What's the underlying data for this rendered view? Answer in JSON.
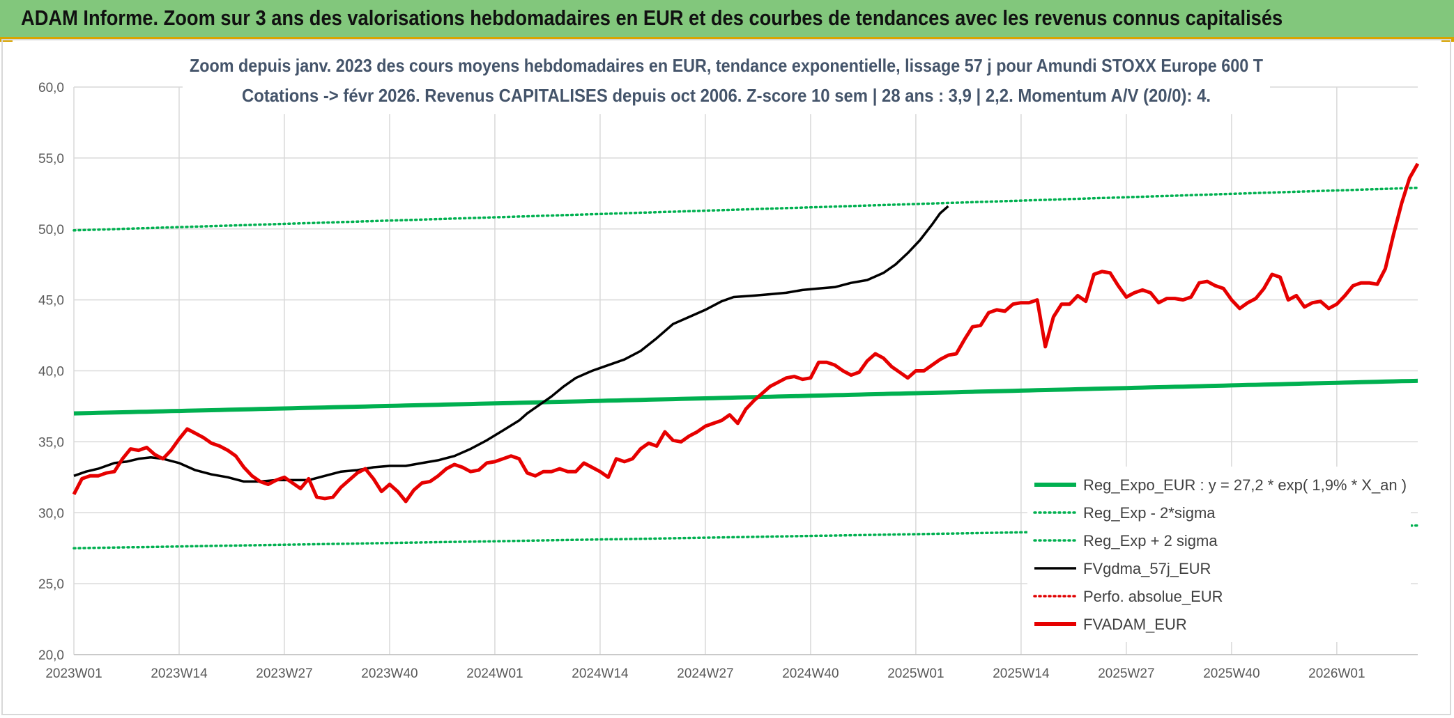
{
  "header": {
    "title": "ADAM Informe. Zoom sur 3 ans des valorisations hebdomadaires en EUR et des courbes de tendances avec les revenus connus capitalisés"
  },
  "colors": {
    "header_bg": "#82c77c",
    "reg_expo": "#00b050",
    "sigma": "#00b050",
    "fvgdma": "#000000",
    "perfo": "#e00000",
    "fvadam": "#e60000",
    "grid": "#d9d9d9"
  },
  "chart_data": {
    "type": "line",
    "title_lines": [
      "Zoom depuis janv. 2023 des cours moyens hebdomadaires en EUR, tendance exponentielle, lissage 57 j pour Amundi STOXX Europe 600 T",
      "Cotations -> févr 2026. Revenus CAPITALISES depuis oct 2006. Z-score 10 sem | 28 ans : 3,9 | 2,2. Momentum A/V (20/0): 4."
    ],
    "ylim": [
      20,
      60
    ],
    "y_ticks": [
      "20,0",
      "25,0",
      "30,0",
      "35,0",
      "40,0",
      "45,0",
      "50,0",
      "55,0",
      "60,0"
    ],
    "y_tick_values": [
      20,
      25,
      30,
      35,
      40,
      45,
      50,
      55,
      60
    ],
    "x_ticks": [
      "2023W01",
      "2023W14",
      "2023W27",
      "2023W40",
      "2024W01",
      "2024W14",
      "2024W27",
      "2024W40",
      "2025W01",
      "2025W14",
      "2025W27",
      "2025W40",
      "2026W01"
    ],
    "x_tick_index": [
      0,
      13,
      26,
      39,
      52,
      65,
      78,
      91,
      104,
      117,
      130,
      143,
      156
    ],
    "n_weeks": 167,
    "grid": true,
    "legend_position": "bottom-right",
    "legend": [
      {
        "label": "Reg_Expo_EUR : y = 27,2 * exp( 1,9% *  X_an )",
        "style": "thick",
        "color": "#00b050"
      },
      {
        "label": "Reg_Exp - 2*sigma",
        "style": "dotted",
        "color": "#00b050"
      },
      {
        "label": "Reg_Exp + 2 sigma",
        "style": "dotted",
        "color": "#00b050"
      },
      {
        "label": "FVgdma_57j_EUR",
        "style": "solid",
        "color": "#000000"
      },
      {
        "label": "Perfo. absolue_EUR",
        "style": "dotted",
        "color": "#e00000"
      },
      {
        "label": "FVADAM_EUR",
        "style": "thick",
        "color": "#e60000"
      }
    ],
    "series": [
      {
        "name": "Reg_Expo_EUR : y = 27,2 * exp( 1,9% *  X_an )",
        "start": 37.0,
        "end": 39.3
      },
      {
        "name": "Reg_Exp - 2*sigma",
        "start": 27.5,
        "end": 29.1
      },
      {
        "name": "Reg_Exp + 2 sigma",
        "start": 49.9,
        "end": 52.9
      },
      {
        "name": "FVgdma_57j_EUR",
        "points": [
          [
            0,
            32.6
          ],
          [
            3,
            32.9
          ],
          [
            6,
            33.1
          ],
          [
            10,
            33.5
          ],
          [
            13,
            33.6
          ],
          [
            16,
            33.8
          ],
          [
            19,
            33.9
          ],
          [
            22,
            33.8
          ],
          [
            26,
            33.5
          ],
          [
            30,
            33.0
          ],
          [
            34,
            32.7
          ],
          [
            38,
            32.5
          ],
          [
            42,
            32.2
          ],
          [
            46,
            32.2
          ],
          [
            50,
            32.3
          ],
          [
            55,
            32.3
          ],
          [
            58,
            32.3
          ],
          [
            62,
            32.6
          ],
          [
            66,
            32.9
          ],
          [
            70,
            33.0
          ],
          [
            74,
            33.2
          ],
          [
            78,
            33.3
          ],
          [
            82,
            33.3
          ],
          [
            86,
            33.5
          ],
          [
            90,
            33.7
          ],
          [
            94,
            34.0
          ],
          [
            98,
            34.5
          ],
          [
            102,
            35.1
          ],
          [
            106,
            35.8
          ],
          [
            110,
            36.5
          ],
          [
            112,
            37.0
          ],
          [
            115,
            37.6
          ],
          [
            118,
            38.2
          ],
          [
            121,
            38.9
          ],
          [
            124,
            39.5
          ],
          [
            128,
            40.0
          ],
          [
            132,
            40.4
          ],
          [
            136,
            40.8
          ],
          [
            140,
            41.4
          ],
          [
            144,
            42.3
          ],
          [
            148,
            43.3
          ],
          [
            152,
            43.8
          ],
          [
            156,
            44.3
          ],
          [
            160,
            44.9
          ],
          [
            163,
            45.2
          ],
          [
            168,
            45.3
          ],
          [
            172,
            45.4
          ],
          [
            176,
            45.5
          ],
          [
            180,
            45.7
          ],
          [
            184,
            45.8
          ],
          [
            188,
            45.9
          ],
          [
            192,
            46.2
          ],
          [
            196,
            46.4
          ],
          [
            200,
            46.9
          ],
          [
            203,
            47.5
          ],
          [
            206,
            48.3
          ],
          [
            209,
            49.2
          ],
          [
            212,
            50.3
          ],
          [
            214,
            51.1
          ],
          [
            216,
            51.6
          ]
        ]
      },
      {
        "name": "FVADAM_EUR",
        "points": [
          [
            0,
            31.3
          ],
          [
            2,
            32.4
          ],
          [
            4,
            32.6
          ],
          [
            6,
            32.6
          ],
          [
            8,
            32.8
          ],
          [
            10,
            32.9
          ],
          [
            12,
            33.8
          ],
          [
            14,
            34.5
          ],
          [
            16,
            34.4
          ],
          [
            18,
            34.6
          ],
          [
            20,
            34.1
          ],
          [
            22,
            33.8
          ],
          [
            24,
            34.4
          ],
          [
            26,
            35.2
          ],
          [
            28,
            35.9
          ],
          [
            30,
            35.6
          ],
          [
            32,
            35.3
          ],
          [
            34,
            34.9
          ],
          [
            36,
            34.7
          ],
          [
            38,
            34.4
          ],
          [
            40,
            34.0
          ],
          [
            42,
            33.2
          ],
          [
            44,
            32.6
          ],
          [
            46,
            32.2
          ],
          [
            48,
            32.0
          ],
          [
            50,
            32.3
          ],
          [
            52,
            32.5
          ],
          [
            54,
            32.1
          ],
          [
            56,
            31.7
          ],
          [
            58,
            32.4
          ],
          [
            60,
            31.1
          ],
          [
            62,
            31.0
          ],
          [
            64,
            31.1
          ],
          [
            66,
            31.8
          ],
          [
            68,
            32.3
          ],
          [
            70,
            32.8
          ],
          [
            72,
            33.1
          ],
          [
            74,
            32.4
          ],
          [
            76,
            31.5
          ],
          [
            78,
            32.0
          ],
          [
            80,
            31.5
          ],
          [
            82,
            30.8
          ],
          [
            84,
            31.6
          ],
          [
            86,
            32.1
          ],
          [
            88,
            32.2
          ],
          [
            90,
            32.6
          ],
          [
            92,
            33.1
          ],
          [
            94,
            33.4
          ],
          [
            96,
            33.2
          ],
          [
            98,
            32.9
          ],
          [
            100,
            33.0
          ],
          [
            102,
            33.5
          ],
          [
            104,
            33.6
          ],
          [
            106,
            33.8
          ],
          [
            108,
            34.0
          ],
          [
            110,
            33.8
          ],
          [
            112,
            32.8
          ],
          [
            114,
            32.6
          ],
          [
            116,
            32.9
          ],
          [
            118,
            32.9
          ],
          [
            120,
            33.1
          ],
          [
            122,
            32.9
          ],
          [
            124,
            32.9
          ],
          [
            126,
            33.5
          ],
          [
            128,
            33.2
          ],
          [
            130,
            32.9
          ],
          [
            132,
            32.5
          ],
          [
            134,
            33.8
          ],
          [
            136,
            33.6
          ],
          [
            138,
            33.8
          ],
          [
            140,
            34.5
          ],
          [
            142,
            34.9
          ],
          [
            144,
            34.7
          ],
          [
            146,
            35.7
          ],
          [
            148,
            35.1
          ],
          [
            150,
            35.0
          ],
          [
            152,
            35.4
          ],
          [
            154,
            35.7
          ],
          [
            156,
            36.1
          ],
          [
            158,
            36.3
          ],
          [
            160,
            36.5
          ],
          [
            162,
            36.9
          ],
          [
            164,
            36.3
          ],
          [
            166,
            37.3
          ],
          [
            168,
            37.9
          ],
          [
            170,
            38.4
          ],
          [
            172,
            38.9
          ],
          [
            174,
            39.2
          ],
          [
            176,
            39.5
          ],
          [
            178,
            39.6
          ],
          [
            180,
            39.4
          ],
          [
            182,
            39.5
          ],
          [
            184,
            40.6
          ],
          [
            186,
            40.6
          ],
          [
            188,
            40.4
          ],
          [
            190,
            40.0
          ],
          [
            192,
            39.7
          ],
          [
            194,
            39.9
          ],
          [
            196,
            40.7
          ],
          [
            198,
            41.2
          ],
          [
            200,
            40.9
          ],
          [
            202,
            40.3
          ],
          [
            204,
            39.9
          ],
          [
            206,
            39.5
          ],
          [
            208,
            40.0
          ],
          [
            210,
            40.0
          ],
          [
            212,
            40.4
          ],
          [
            214,
            40.8
          ],
          [
            216,
            41.1
          ],
          [
            218,
            41.2
          ],
          [
            220,
            42.2
          ],
          [
            222,
            43.1
          ],
          [
            224,
            43.2
          ],
          [
            226,
            44.1
          ],
          [
            228,
            44.3
          ],
          [
            230,
            44.2
          ],
          [
            232,
            44.7
          ],
          [
            234,
            44.8
          ],
          [
            236,
            44.8
          ],
          [
            238,
            45.0
          ],
          [
            240,
            41.7
          ],
          [
            242,
            43.8
          ],
          [
            244,
            44.7
          ],
          [
            246,
            44.7
          ],
          [
            248,
            45.3
          ],
          [
            250,
            44.9
          ],
          [
            252,
            46.8
          ],
          [
            254,
            47.0
          ],
          [
            256,
            46.9
          ],
          [
            258,
            46.0
          ],
          [
            260,
            45.2
          ],
          [
            262,
            45.5
          ],
          [
            264,
            45.7
          ],
          [
            266,
            45.5
          ],
          [
            268,
            44.8
          ],
          [
            270,
            45.1
          ],
          [
            272,
            45.1
          ],
          [
            274,
            45.0
          ],
          [
            276,
            45.2
          ],
          [
            278,
            46.2
          ],
          [
            280,
            46.3
          ],
          [
            282,
            46.0
          ],
          [
            284,
            45.8
          ],
          [
            286,
            45.0
          ],
          [
            288,
            44.4
          ],
          [
            290,
            44.8
          ],
          [
            292,
            45.1
          ],
          [
            294,
            45.8
          ],
          [
            296,
            46.8
          ],
          [
            298,
            46.6
          ],
          [
            300,
            45.0
          ],
          [
            302,
            45.3
          ],
          [
            304,
            44.5
          ],
          [
            306,
            44.8
          ],
          [
            308,
            44.9
          ],
          [
            310,
            44.4
          ],
          [
            312,
            44.7
          ],
          [
            314,
            45.3
          ],
          [
            316,
            46.0
          ],
          [
            318,
            46.2
          ],
          [
            320,
            46.2
          ],
          [
            322,
            46.1
          ],
          [
            324,
            47.2
          ],
          [
            326,
            49.6
          ],
          [
            328,
            51.8
          ],
          [
            330,
            53.6
          ],
          [
            332,
            54.6
          ]
        ]
      }
    ]
  }
}
